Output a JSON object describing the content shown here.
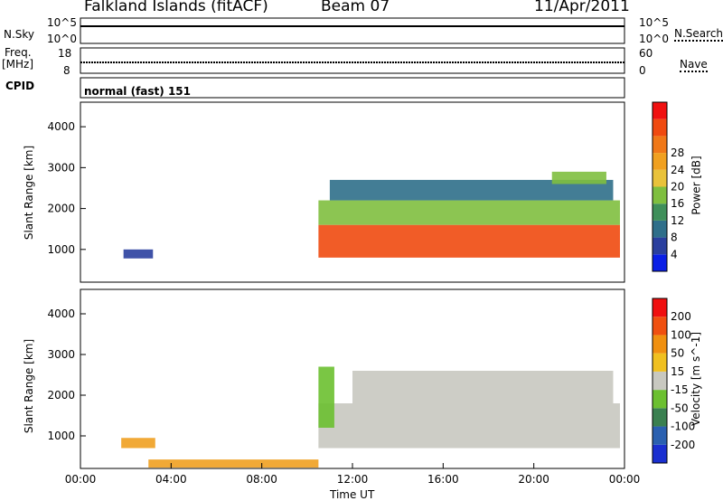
{
  "header": {
    "title": "Falkland Islands (fitACF)",
    "beam": "Beam 07",
    "date": "11/Apr/2011"
  },
  "side_labels": {
    "n_sky": "N.Sky",
    "n_search": "N.Search",
    "freq": "Freq.",
    "freq_unit": "[MHz]",
    "nave": "Nave",
    "cpid": "CPID",
    "mode": "normal (fast) 151"
  },
  "status_axes": {
    "noise_left_ticks": [
      "10^5",
      "10^0"
    ],
    "noise_right_ticks": [
      "10^5",
      "10^0"
    ],
    "freq_left_ticks": [
      "18",
      "8"
    ],
    "nave_right_ticks": [
      "60",
      "0"
    ]
  },
  "chart_data": [
    {
      "type": "heatmap",
      "name": "power",
      "ylabel": "Slant Range [km]",
      "yticks": [
        "1000",
        "2000",
        "3000",
        "4000"
      ],
      "ylim": [
        200,
        4600
      ],
      "xlim": [
        0,
        24
      ],
      "colorbar": {
        "label": "Power [dB]",
        "ticks": [
          "4",
          "8",
          "12",
          "16",
          "20",
          "24",
          "28"
        ],
        "colors": [
          "#0a1fe6",
          "#2a3f9e",
          "#2f6f8a",
          "#3f8f5a",
          "#7fbf3f",
          "#e9c23a",
          "#f0a020",
          "#f07818",
          "#f04a10",
          "#f01010"
        ]
      },
      "bands": [
        {
          "x0": 1.9,
          "x1": 3.2,
          "y0": 780,
          "y1": 1000,
          "color": "#2a3f9e"
        },
        {
          "x0": 10.5,
          "x1": 23.8,
          "y0": 800,
          "y1": 1600,
          "color": "#f04a10"
        },
        {
          "x0": 10.5,
          "x1": 23.8,
          "y0": 1600,
          "y1": 2200,
          "color": "#7fbf3f"
        },
        {
          "x0": 11.0,
          "x1": 23.5,
          "y0": 2200,
          "y1": 2700,
          "color": "#2f6f8a"
        },
        {
          "x0": 20.8,
          "x1": 23.2,
          "y0": 2600,
          "y1": 2900,
          "color": "#7fbf3f"
        }
      ]
    },
    {
      "type": "heatmap",
      "name": "velocity",
      "ylabel": "Slant Range [km]",
      "yticks": [
        "1000",
        "2000",
        "3000",
        "4000"
      ],
      "ylim": [
        200,
        4600
      ],
      "xlim": [
        0,
        24
      ],
      "xlabel": "Time UT",
      "xticks": [
        "00:00",
        "04:00",
        "08:00",
        "12:00",
        "16:00",
        "20:00",
        "00:00"
      ],
      "colorbar": {
        "label": "Velocity [m s^-1]",
        "ticks": [
          "200",
          "100",
          "50",
          "15",
          "-15",
          "-50",
          "-100",
          "-200"
        ],
        "colors": [
          "#1a2fd0",
          "#2a60b0",
          "#3a8050",
          "#6cc030",
          "#c8c8c0",
          "#f0c020",
          "#f09010",
          "#f05010",
          "#f01010"
        ]
      },
      "bands": [
        {
          "x0": 10.5,
          "x1": 23.8,
          "y0": 700,
          "y1": 1800,
          "color": "#c8c8c0"
        },
        {
          "x0": 10.5,
          "x1": 11.2,
          "y0": 1200,
          "y1": 2700,
          "color": "#6cc030"
        },
        {
          "x0": 12.0,
          "x1": 23.5,
          "y0": 1800,
          "y1": 2600,
          "color": "#c8c8c0"
        },
        {
          "x0": 1.8,
          "x1": 3.3,
          "y0": 700,
          "y1": 950,
          "color": "#f0a020"
        },
        {
          "x0": 3.0,
          "x1": 10.5,
          "y0": 220,
          "y1": 420,
          "color": "#f0a020"
        }
      ]
    }
  ]
}
